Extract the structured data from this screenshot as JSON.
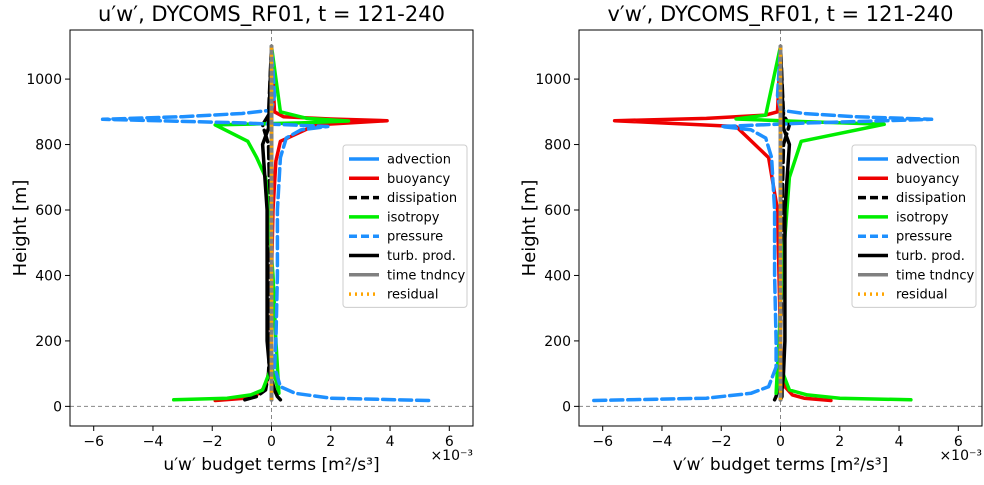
{
  "chart_data": [
    {
      "type": "line",
      "title": "u′w′, DYCOMS_RF01, t = 121-240",
      "xlabel": "u′w′ budget terms [m²/s³]",
      "ylabel": "Height [m]",
      "x_multiplier_label": "×10⁻³",
      "xlim": [
        -6.8,
        6.8
      ],
      "ylim": [
        -60,
        1150
      ],
      "xticks": [
        -6,
        -4,
        -2,
        0,
        2,
        4,
        6
      ],
      "yticks": [
        0,
        200,
        400,
        600,
        800,
        1000
      ],
      "grid": false,
      "legend_position": "center-right",
      "reference_lines": {
        "x": 0,
        "y": 0
      },
      "series": [
        {
          "name": "advection",
          "color": "#1e90ff",
          "dash": "solid",
          "x": [
            0.0,
            0.0,
            0.0,
            0.0,
            0.0,
            0.0,
            0.0,
            0.0,
            0.0
          ],
          "y": [
            20,
            60,
            200,
            400,
            600,
            800,
            870,
            900,
            1100
          ]
        },
        {
          "name": "buoyancy",
          "color": "#ee0000",
          "dash": "solid",
          "x": [
            -1.9,
            -0.9,
            -0.5,
            -0.2,
            -0.05,
            -0.02,
            0.0,
            0.05,
            0.15,
            0.3,
            1.5,
            3.9,
            2.0,
            0.4,
            0.1,
            0.0
          ],
          "y": [
            18,
            25,
            35,
            60,
            120,
            200,
            400,
            600,
            750,
            810,
            860,
            873,
            878,
            885,
            900,
            1100
          ]
        },
        {
          "name": "dissipation",
          "color": "#000000",
          "dash": "dash",
          "x": [
            -0.9,
            -0.5,
            -0.2,
            -0.1,
            -0.05,
            -0.05,
            -0.05,
            -0.1,
            -0.3,
            -0.1,
            0.0
          ],
          "y": [
            20,
            30,
            50,
            100,
            200,
            400,
            600,
            800,
            860,
            890,
            1100
          ]
        },
        {
          "name": "isotropy",
          "color": "#00ee00",
          "dash": "solid",
          "x": [
            -3.3,
            -1.5,
            -0.7,
            -0.3,
            0.0,
            0.15,
            0.25,
            0.15,
            0.05,
            -0.2,
            -0.5,
            -0.8,
            -1.9,
            -0.5,
            1.0,
            2.6,
            1.2,
            0.3,
            0.0
          ],
          "y": [
            20,
            25,
            35,
            50,
            120,
            80,
            40,
            200,
            400,
            700,
            760,
            810,
            860,
            863,
            866,
            872,
            880,
            900,
            1100
          ]
        },
        {
          "name": "pressure",
          "color": "#1e90ff",
          "dash": "dash",
          "x": [
            5.3,
            2.0,
            0.8,
            0.3,
            0.1,
            0.15,
            0.2,
            0.2,
            0.3,
            0.5,
            1.0,
            1.9,
            -1.0,
            -5.7,
            -3.0,
            -1.0,
            0.0,
            0.1,
            0.0
          ],
          "y": [
            18,
            25,
            40,
            60,
            120,
            200,
            400,
            600,
            760,
            820,
            845,
            855,
            866,
            877,
            885,
            895,
            905,
            950,
            1100
          ]
        },
        {
          "name": "turb. prod.",
          "color": "#000000",
          "dash": "solid",
          "x": [
            0.3,
            0.2,
            0.1,
            -0.05,
            -0.15,
            -0.15,
            -0.15,
            -0.3,
            -0.1,
            0.0
          ],
          "y": [
            20,
            30,
            50,
            100,
            200,
            400,
            600,
            800,
            850,
            1100
          ]
        },
        {
          "name": "time tndncy",
          "color": "#808080",
          "dash": "solid",
          "x": [
            0.0,
            0.0
          ],
          "y": [
            20,
            1100
          ]
        },
        {
          "name": "residual",
          "color": "#ffa500",
          "dash": "dot",
          "x": [
            0.0,
            0.0
          ],
          "y": [
            20,
            1100
          ]
        }
      ]
    },
    {
      "type": "line",
      "title": "v′w′, DYCOMS_RF01, t = 121-240",
      "xlabel": "v′w′ budget terms [m²/s³]",
      "ylabel": "Height [m]",
      "x_multiplier_label": "×10⁻³",
      "xlim": [
        -6.8,
        6.8
      ],
      "ylim": [
        -60,
        1150
      ],
      "xticks": [
        -6,
        -4,
        -2,
        0,
        2,
        4,
        6
      ],
      "yticks": [
        0,
        200,
        400,
        600,
        800,
        1000
      ],
      "grid": false,
      "legend_position": "center-right",
      "reference_lines": {
        "x": 0,
        "y": 0
      },
      "series": [
        {
          "name": "advection",
          "color": "#1e90ff",
          "dash": "solid",
          "x": [
            0.0,
            0.0,
            0.0,
            0.0,
            0.0,
            0.0,
            0.0,
            0.0,
            0.0
          ],
          "y": [
            20,
            60,
            200,
            400,
            600,
            800,
            870,
            900,
            1100
          ]
        },
        {
          "name": "buoyancy",
          "color": "#ee0000",
          "dash": "solid",
          "x": [
            1.7,
            0.8,
            0.4,
            0.15,
            0.05,
            0.0,
            -0.05,
            -0.1,
            -0.4,
            -1.5,
            -5.6,
            -2.5,
            -0.5,
            -0.1,
            0.0
          ],
          "y": [
            18,
            25,
            35,
            60,
            120,
            200,
            400,
            600,
            760,
            855,
            873,
            880,
            890,
            900,
            1100
          ]
        },
        {
          "name": "dissipation",
          "color": "#000000",
          "dash": "dash",
          "x": [
            -0.2,
            -0.15,
            -0.1,
            -0.05,
            0.0,
            0.05,
            0.05,
            0.1,
            0.3,
            0.1,
            0.0
          ],
          "y": [
            20,
            30,
            50,
            100,
            200,
            400,
            600,
            800,
            860,
            890,
            1100
          ]
        },
        {
          "name": "isotropy",
          "color": "#00ee00",
          "dash": "solid",
          "x": [
            4.4,
            2.0,
            0.9,
            0.3,
            0.0,
            -0.1,
            -0.15,
            -0.05,
            0.05,
            0.3,
            0.7,
            3.5,
            0.8,
            -1.5,
            -0.5,
            0.0
          ],
          "y": [
            20,
            25,
            35,
            50,
            120,
            80,
            40,
            200,
            400,
            700,
            810,
            862,
            870,
            878,
            890,
            1100
          ]
        },
        {
          "name": "pressure",
          "color": "#1e90ff",
          "dash": "dash",
          "x": [
            -6.3,
            -2.5,
            -1.0,
            -0.4,
            -0.15,
            -0.15,
            -0.2,
            -0.2,
            -0.3,
            -0.5,
            -1.0,
            -2.0,
            1.0,
            5.1,
            2.5,
            0.8,
            0.0,
            -0.1,
            0.0
          ],
          "y": [
            18,
            25,
            40,
            60,
            120,
            200,
            400,
            600,
            760,
            820,
            845,
            855,
            866,
            877,
            885,
            895,
            905,
            950,
            1100
          ]
        },
        {
          "name": "turb. prod.",
          "color": "#000000",
          "dash": "solid",
          "x": [
            0.0,
            0.05,
            0.05,
            0.1,
            0.15,
            0.15,
            0.15,
            0.3,
            0.1,
            0.0
          ],
          "y": [
            20,
            30,
            50,
            100,
            200,
            400,
            600,
            800,
            850,
            1100
          ]
        },
        {
          "name": "time tndncy",
          "color": "#808080",
          "dash": "solid",
          "x": [
            0.0,
            0.0
          ],
          "y": [
            20,
            1100
          ]
        },
        {
          "name": "residual",
          "color": "#ffa500",
          "dash": "dot",
          "x": [
            0.0,
            0.0
          ],
          "y": [
            20,
            1100
          ]
        }
      ]
    }
  ]
}
